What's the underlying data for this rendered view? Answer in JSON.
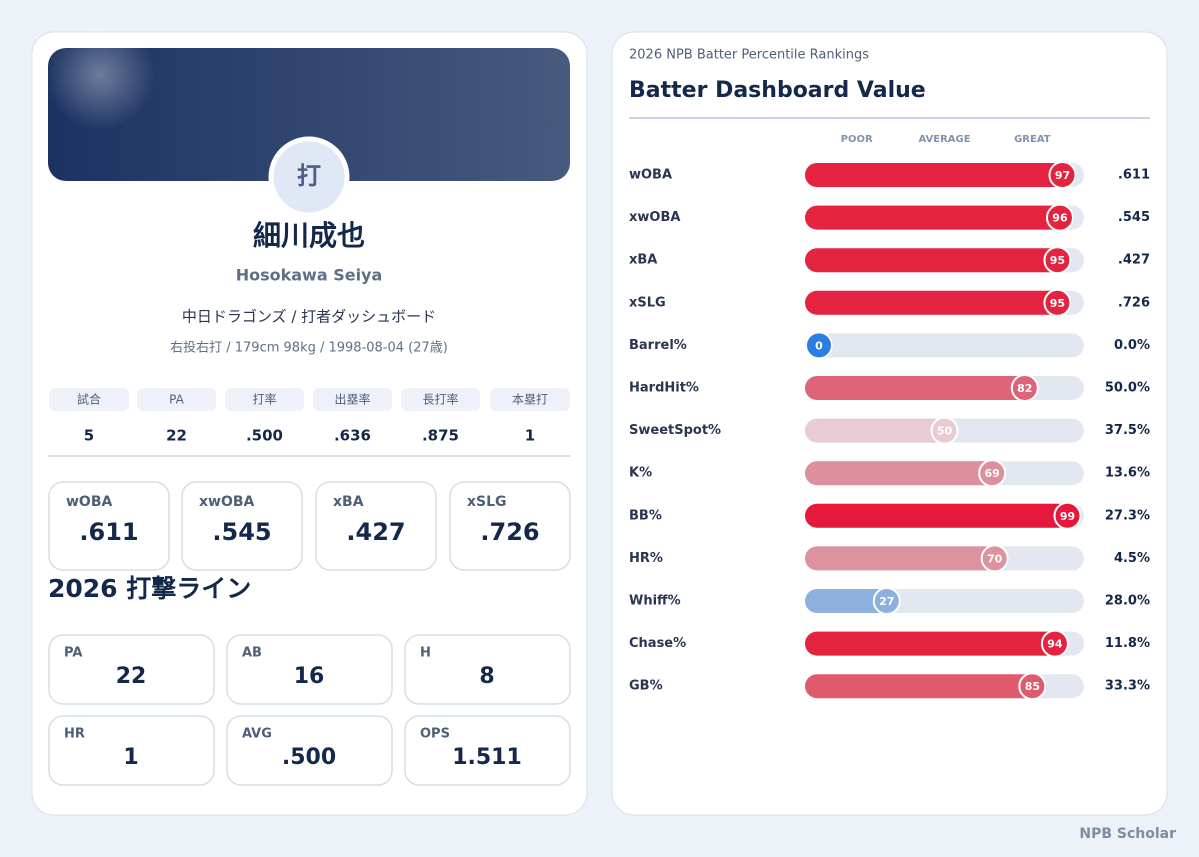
{
  "profile": {
    "avatar": "打",
    "name": "細川成也",
    "romanized": "Hosokawa Seiya",
    "team": "中日ドラゴンズ / 打者ダッシュボード",
    "bio": "右投右打 / 179cm 98kg / 1998-08-04 (27歳)",
    "stat_table": {
      "headers": [
        "試合",
        "PA",
        "打率",
        "出塁率",
        "長打率",
        "本塁打"
      ],
      "values": [
        "5",
        "22",
        ".500",
        ".636",
        ".875",
        "1"
      ]
    },
    "metrics": [
      {
        "label": "wOBA",
        "value": ".611"
      },
      {
        "label": "xwOBA",
        "value": ".545"
      },
      {
        "label": "xBA",
        "value": ".427"
      },
      {
        "label": "xSLG",
        "value": ".726"
      }
    ],
    "section_title": "2026 打撃ライン",
    "line_cards": [
      {
        "label": "PA",
        "value": "22"
      },
      {
        "label": "AB",
        "value": "16"
      },
      {
        "label": "H",
        "value": "8"
      },
      {
        "label": "HR",
        "value": "1"
      },
      {
        "label": "AVG",
        "value": ".500"
      },
      {
        "label": "OPS",
        "value": "1.511"
      }
    ]
  },
  "chart_data": {
    "type": "percentile-bar",
    "subtitle": "2026 NPB Batter Percentile Rankings",
    "title": "Batter Dashboard Value",
    "xlim": [
      0,
      100
    ],
    "xticks": [
      {
        "value": 15,
        "label": "POOR"
      },
      {
        "value": 50,
        "label": "AVERAGE"
      },
      {
        "value": 85,
        "label": "GREAT"
      }
    ],
    "categories": [
      "wOBA",
      "xwOBA",
      "xBA",
      "xSLG",
      "Barrel%",
      "HardHit%",
      "SweetSpot%",
      "K%",
      "BB%",
      "HR%",
      "Whiff%",
      "Chase%",
      "GB%"
    ],
    "values": [
      97,
      96,
      95,
      95,
      0,
      82,
      50,
      69,
      99,
      70,
      27,
      94,
      85
    ],
    "colors": [
      "#e3233f",
      "#e3233f",
      "#e3233f",
      "#e3233f",
      "#2a7de1",
      "#e06478",
      "#e8ccd3",
      "#dc8f9c",
      "#e5173b",
      "#dc929f",
      "#8eb0dc",
      "#e3233f",
      "#e05a6e"
    ],
    "stats": [
      ".611",
      ".545",
      ".427",
      ".726",
      "0.0%",
      "50.0%",
      "37.5%",
      "13.6%",
      "27.3%",
      "4.5%",
      "28.0%",
      "11.8%",
      "33.3%"
    ]
  },
  "footer": "NPB Scholar"
}
